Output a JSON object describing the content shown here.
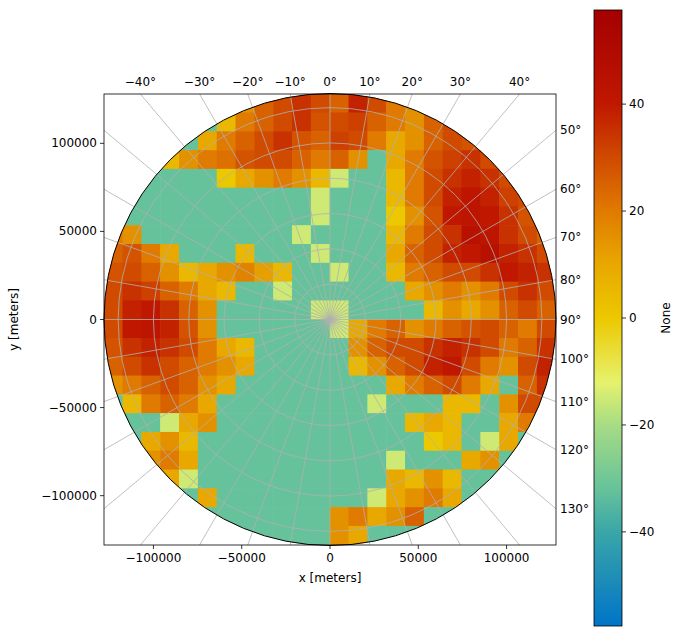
{
  "chart_data": {
    "type": "heatmap",
    "xlabel": "x [meters]",
    "ylabel": "y [meters]",
    "xlim": [
      -128000,
      128000
    ],
    "ylim": [
      -128000,
      128000
    ],
    "xticks": [
      {
        "value": -100000,
        "label": "−100000"
      },
      {
        "value": -50000,
        "label": "−50000"
      },
      0,
      50000,
      100000
    ],
    "yticks": [
      {
        "value": -100000,
        "label": "−100000"
      },
      {
        "value": -50000,
        "label": "−50000"
      },
      0,
      50000,
      100000
    ],
    "grid": true,
    "azimuth_top": [
      {
        "value": -40,
        "label": "−40°"
      },
      {
        "value": -30,
        "label": "−30°"
      },
      {
        "value": -20,
        "label": "−20°"
      },
      {
        "value": -10,
        "label": "−10°"
      },
      {
        "value": 0,
        "label": "0°"
      },
      {
        "value": 10,
        "label": "10°"
      },
      {
        "value": 20,
        "label": "20°"
      },
      {
        "value": 30,
        "label": "30°"
      },
      {
        "value": 40,
        "label": "40°"
      }
    ],
    "azimuth_right": [
      {
        "value": 50,
        "label": "50°"
      },
      {
        "value": 60,
        "label": "60°"
      },
      {
        "value": 70,
        "label": "70°"
      },
      {
        "value": 80,
        "label": "80°"
      },
      {
        "value": 90,
        "label": "90°"
      },
      {
        "value": 100,
        "label": "100°"
      },
      {
        "value": 110,
        "label": "110°"
      },
      {
        "value": 120,
        "label": "120°"
      },
      {
        "value": 130,
        "label": "130°"
      }
    ],
    "rings": [
      20000,
      40000,
      60000,
      80000,
      100000,
      120000
    ],
    "colorbar": {
      "label": "None",
      "range": [
        -57.6,
        57.6
      ],
      "ticks": [
        {
          "value": -40,
          "label": "−40"
        },
        {
          "value": -20,
          "label": "−20"
        },
        0,
        20,
        40
      ]
    },
    "x": [
      -122667,
      -112000,
      -101333,
      -90667,
      -80000,
      -69333,
      -58667,
      -48000,
      -37333,
      -26667,
      -16000,
      -5333,
      5333,
      16000,
      26667,
      37333,
      48000,
      58667,
      69333,
      80000,
      90667,
      101333,
      112000,
      122667
    ],
    "y": [
      122667,
      112000,
      101333,
      90667,
      80000,
      69333,
      58667,
      48000,
      37333,
      26667,
      16000,
      5333,
      -5333,
      -16000,
      -26667,
      -37333,
      -48000,
      -58667,
      -69333,
      -80000,
      -90667,
      -101333,
      -112000,
      -122667
    ],
    "cells": [
      [
        null,
        null,
        null,
        null,
        null,
        null,
        null,
        15,
        25,
        30,
        35,
        30,
        25,
        38,
        30,
        20,
        15,
        null,
        null,
        null,
        null,
        null,
        null,
        null
      ],
      [
        null,
        null,
        null,
        null,
        null,
        -32,
        5,
        20,
        25,
        30,
        35,
        28,
        30,
        32,
        25,
        20,
        15,
        25,
        30,
        null,
        null,
        null,
        null,
        null
      ],
      [
        null,
        null,
        null,
        null,
        -32,
        10,
        20,
        25,
        30,
        35,
        28,
        25,
        32,
        30,
        20,
        10,
        15,
        25,
        30,
        28,
        null,
        null,
        null,
        null
      ],
      [
        null,
        null,
        null,
        5,
        15,
        20,
        22,
        28,
        30,
        30,
        25,
        20,
        25,
        15,
        -32,
        10,
        20,
        28,
        32,
        35,
        30,
        null,
        null,
        null
      ],
      [
        null,
        null,
        -32,
        -32,
        -32,
        -32,
        0,
        10,
        15,
        20,
        15,
        5,
        -15,
        -32,
        -32,
        5,
        20,
        30,
        35,
        38,
        35,
        30,
        null,
        null
      ],
      [
        null,
        -32,
        -32,
        -32,
        -32,
        -32,
        -32,
        -32,
        -32,
        -32,
        -32,
        -15,
        -32,
        -32,
        -32,
        5,
        20,
        30,
        38,
        42,
        38,
        32,
        30,
        null
      ],
      [
        null,
        -32,
        -32,
        -32,
        -32,
        -32,
        -32,
        -32,
        -32,
        -32,
        -32,
        -15,
        -32,
        -32,
        -32,
        0,
        15,
        28,
        40,
        42,
        40,
        35,
        28,
        null
      ],
      [
        20,
        15,
        -32,
        -32,
        -32,
        -32,
        -32,
        -32,
        -32,
        -32,
        -15,
        -32,
        -32,
        -32,
        -32,
        5,
        20,
        30,
        35,
        45,
        42,
        35,
        30,
        25
      ],
      [
        25,
        28,
        20,
        10,
        -32,
        -32,
        -32,
        5,
        -32,
        -32,
        -32,
        -15,
        -32,
        -32,
        -32,
        10,
        25,
        30,
        38,
        40,
        45,
        38,
        35,
        30
      ],
      [
        28,
        30,
        25,
        15,
        5,
        10,
        15,
        18,
        12,
        5,
        -32,
        -32,
        -15,
        -32,
        -32,
        5,
        20,
        25,
        30,
        30,
        35,
        40,
        38,
        35
      ],
      [
        30,
        35,
        32,
        25,
        20,
        10,
        5,
        -32,
        -32,
        -15,
        -32,
        -32,
        -32,
        -32,
        -32,
        -32,
        10,
        15,
        20,
        15,
        20,
        30,
        35,
        30
      ],
      [
        30,
        38,
        40,
        35,
        25,
        15,
        -32,
        -32,
        -32,
        -32,
        -32,
        -15,
        -15,
        -32,
        -32,
        -32,
        -32,
        5,
        15,
        10,
        15,
        25,
        30,
        25
      ],
      [
        30,
        40,
        42,
        38,
        28,
        15,
        -32,
        -32,
        -32,
        -32,
        -32,
        -32,
        -15,
        10,
        20,
        25,
        15,
        20,
        25,
        28,
        30,
        25,
        20,
        30
      ],
      [
        28,
        35,
        38,
        35,
        30,
        20,
        10,
        5,
        -32,
        -32,
        -32,
        -32,
        -32,
        15,
        25,
        30,
        30,
        35,
        38,
        35,
        30,
        20,
        25,
        35
      ],
      [
        25,
        30,
        35,
        30,
        25,
        20,
        15,
        10,
        -32,
        -32,
        -32,
        -32,
        -32,
        5,
        15,
        25,
        30,
        38,
        40,
        30,
        20,
        15,
        30,
        38
      ],
      [
        15,
        20,
        25,
        30,
        25,
        15,
        10,
        -32,
        -32,
        -32,
        -32,
        -32,
        -32,
        -32,
        -32,
        10,
        20,
        25,
        30,
        20,
        10,
        -32,
        25,
        35
      ],
      [
        -32,
        5,
        20,
        25,
        20,
        10,
        -32,
        -32,
        -32,
        -32,
        -32,
        -32,
        -32,
        -32,
        -15,
        -32,
        -32,
        -32,
        5,
        5,
        -32,
        15,
        30,
        30
      ],
      [
        null,
        -32,
        -32,
        -15,
        10,
        15,
        -32,
        -32,
        -32,
        -32,
        -32,
        -32,
        -32,
        -32,
        -32,
        -32,
        5,
        10,
        5,
        -32,
        -32,
        10,
        20,
        null
      ],
      [
        null,
        -32,
        10,
        15,
        5,
        -32,
        -32,
        -32,
        -32,
        -32,
        -32,
        -32,
        -32,
        -32,
        -32,
        -32,
        -32,
        0,
        5,
        -32,
        -15,
        10,
        -32,
        null
      ],
      [
        null,
        null,
        15,
        20,
        10,
        -32,
        -32,
        -32,
        -32,
        -32,
        -32,
        -32,
        -32,
        -32,
        -32,
        -15,
        -32,
        -32,
        -32,
        10,
        15,
        -32,
        null,
        null
      ],
      [
        null,
        null,
        null,
        10,
        -15,
        -32,
        -32,
        -32,
        -32,
        -32,
        -32,
        -32,
        -32,
        -32,
        -32,
        10,
        5,
        15,
        5,
        -32,
        -32,
        null,
        null,
        null
      ],
      [
        null,
        null,
        null,
        null,
        -32,
        10,
        -32,
        -32,
        -32,
        -32,
        -32,
        -32,
        -32,
        -32,
        -15,
        10,
        15,
        20,
        10,
        -32,
        null,
        null,
        null,
        null
      ],
      [
        null,
        null,
        null,
        null,
        null,
        -32,
        -32,
        -32,
        -32,
        -32,
        -32,
        -32,
        15,
        20,
        10,
        15,
        25,
        -32,
        -32,
        null,
        null,
        null,
        null,
        null
      ],
      [
        null,
        null,
        null,
        null,
        null,
        null,
        null,
        -32,
        -32,
        -32,
        -32,
        -32,
        15,
        10,
        -32,
        -32,
        -32,
        null,
        null,
        null,
        null,
        null,
        null,
        null
      ]
    ]
  }
}
